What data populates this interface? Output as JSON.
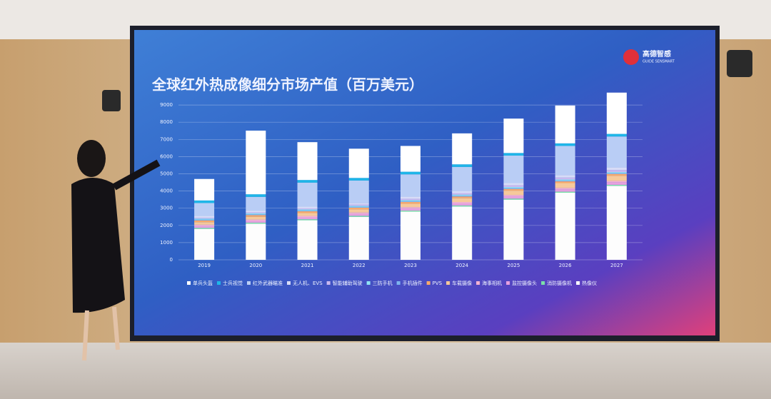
{
  "logo": {
    "name": "高德智感",
    "subtitle": "GUIDE SENSMART"
  },
  "chart_data": {
    "type": "stacked-bar",
    "title": "全球红外热成像细分市场产值（百万美元）",
    "categories": [
      "2019",
      "2020",
      "2021",
      "2022",
      "2023",
      "2024",
      "2025",
      "2026",
      "2027"
    ],
    "ylim": [
      0,
      10000
    ],
    "yticks": [
      0,
      1000,
      2000,
      3000,
      4000,
      5000,
      6000,
      7000,
      8000,
      9000
    ],
    "grid": true,
    "series": [
      {
        "name": "单兵头盔",
        "color": "#ffffff",
        "values": [
          1250,
          3700,
          2200,
          1700,
          1500,
          1800,
          2000,
          2200,
          2400
        ]
      },
      {
        "name": "士兵视觉",
        "color": "#1fb6e8",
        "values": [
          150,
          150,
          150,
          150,
          150,
          150,
          150,
          150,
          150
        ]
      },
      {
        "name": "红外武器瞄准",
        "color": "#b9cdf5",
        "values": [
          750,
          800,
          1400,
          1300,
          1300,
          1400,
          1600,
          1700,
          1800
        ]
      },
      {
        "name": "无人机、EVS",
        "color": "#d7dcf7",
        "values": [
          100,
          100,
          100,
          100,
          120,
          120,
          130,
          140,
          150
        ]
      },
      {
        "name": "智能辅助驾驶",
        "color": "#c9b8f0",
        "values": [
          50,
          50,
          60,
          70,
          80,
          90,
          100,
          110,
          120
        ]
      },
      {
        "name": "三防手机",
        "color": "#8fe3f5",
        "values": [
          60,
          60,
          60,
          60,
          60,
          60,
          60,
          60,
          60
        ]
      },
      {
        "name": "手机插件",
        "color": "#7db4ef",
        "values": [
          50,
          50,
          50,
          50,
          50,
          50,
          50,
          50,
          50
        ]
      },
      {
        "name": "PVS",
        "color": "#f7a96b",
        "values": [
          100,
          100,
          100,
          100,
          100,
          100,
          100,
          100,
          100
        ]
      },
      {
        "name": "车载摄像",
        "color": "#f6c99a",
        "values": [
          150,
          160,
          170,
          180,
          200,
          220,
          250,
          280,
          300
        ]
      },
      {
        "name": "海事相机",
        "color": "#f3b3d2",
        "values": [
          80,
          80,
          80,
          80,
          80,
          80,
          80,
          80,
          80
        ]
      },
      {
        "name": "监控摄像头",
        "color": "#e6a0e0",
        "values": [
          100,
          100,
          110,
          110,
          120,
          120,
          130,
          140,
          150
        ]
      },
      {
        "name": "消防摄像机",
        "color": "#7be0a8",
        "values": [
          60,
          60,
          60,
          60,
          60,
          60,
          60,
          60,
          60
        ]
      },
      {
        "name": "热像仪",
        "color": "#fdfdfd",
        "values": [
          1800,
          2100,
          2300,
          2500,
          2800,
          3100,
          3500,
          3900,
          4300
        ]
      }
    ]
  }
}
